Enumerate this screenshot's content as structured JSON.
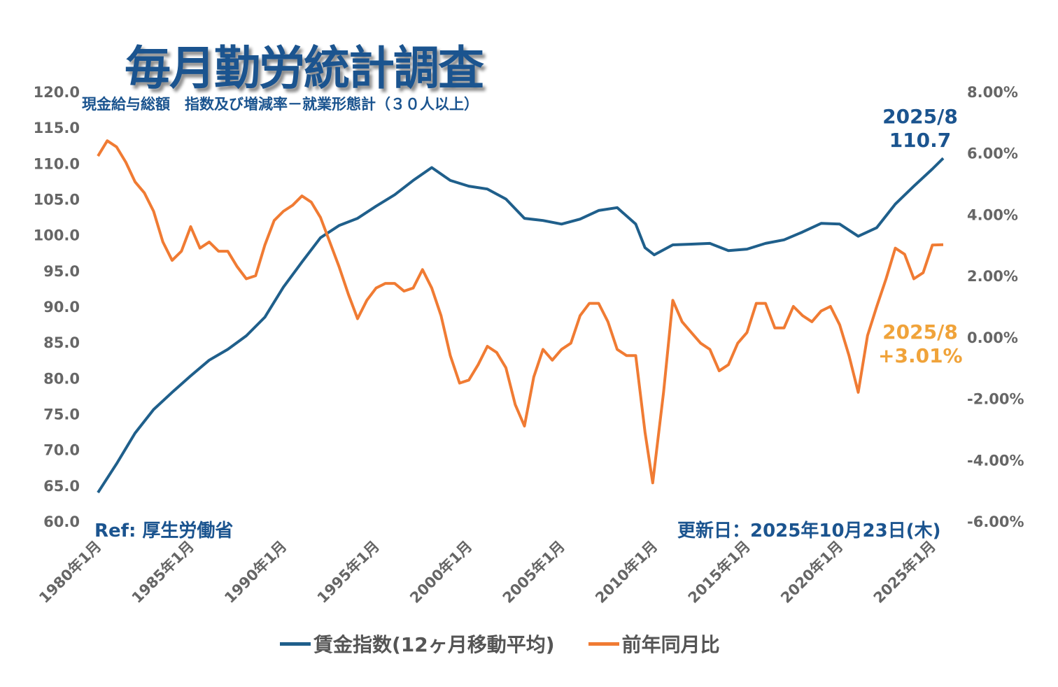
{
  "title": "毎月勤労統計調査",
  "subtitle": "現金給与総額　指数及び増減率－就業形態計（３０人以上）",
  "ref": "Ref: 厚生労働省",
  "updated": "更新日：2025年10月23日(木)",
  "colors": {
    "index": "#1f5f8b",
    "yoy": "#f07b33",
    "title": "#1b548f",
    "yoy_annotation": "#f0a33a",
    "axis_text": "#666666"
  },
  "chart_data": {
    "type": "line",
    "title": "毎月勤労統計調査",
    "subtitle": "現金給与総額　指数及び増減率－就業形態計（３０人以上）",
    "grid": false,
    "legend_position": "bottom",
    "x_range": [
      "1980-01",
      "2025-08"
    ],
    "x_ticks": [
      "1980年1月",
      "1985年1月",
      "1990年1月",
      "1995年1月",
      "2000年1月",
      "2005年1月",
      "2010年1月",
      "2015年1月",
      "2020年1月",
      "2025年1月"
    ],
    "y_left": {
      "range": [
        60,
        120
      ],
      "ticks": [
        "60.0",
        "65.0",
        "70.0",
        "75.0",
        "80.0",
        "85.0",
        "90.0",
        "95.0",
        "100.0",
        "105.0",
        "110.0",
        "115.0",
        "120.0"
      ]
    },
    "y_right": {
      "range": [
        -6,
        8
      ],
      "ticks": [
        "-6.00%",
        "-4.00%",
        "-2.00%",
        "0.00%",
        "2.00%",
        "4.00%",
        "6.00%",
        "8.00%"
      ]
    },
    "series": [
      {
        "name": "賃金指数(12ヶ月移動平均)",
        "axis": "left",
        "color": "#1f5f8b",
        "points": [
          [
            "1980-01",
            64
          ],
          [
            "1981-01",
            68
          ],
          [
            "1982-01",
            72.3
          ],
          [
            "1983-01",
            75.6
          ],
          [
            "1984-01",
            78
          ],
          [
            "1985-01",
            80.3
          ],
          [
            "1986-01",
            82.5
          ],
          [
            "1987-01",
            84
          ],
          [
            "1988-01",
            85.9
          ],
          [
            "1989-01",
            88.5
          ],
          [
            "1990-01",
            92.7
          ],
          [
            "1991-01",
            96.2
          ],
          [
            "1992-01",
            99.6
          ],
          [
            "1993-01",
            101.3
          ],
          [
            "1994-01",
            102.3
          ],
          [
            "1995-01",
            104
          ],
          [
            "1996-01",
            105.6
          ],
          [
            "1997-01",
            107.6
          ],
          [
            "1998-01",
            109.4
          ],
          [
            "1999-01",
            107.6
          ],
          [
            "2000-01",
            106.8
          ],
          [
            "2001-01",
            106.4
          ],
          [
            "2002-01",
            105
          ],
          [
            "2003-01",
            102.3
          ],
          [
            "2004-01",
            102
          ],
          [
            "2005-01",
            101.5
          ],
          [
            "2006-01",
            102.2
          ],
          [
            "2007-01",
            103.4
          ],
          [
            "2008-01",
            103.8
          ],
          [
            "2009-01",
            101.5
          ],
          [
            "2009-07",
            98.2
          ],
          [
            "2010-01",
            97.2
          ],
          [
            "2011-01",
            98.6
          ],
          [
            "2012-01",
            98.7
          ],
          [
            "2013-01",
            98.8
          ],
          [
            "2014-01",
            97.8
          ],
          [
            "2015-01",
            98
          ],
          [
            "2016-01",
            98.8
          ],
          [
            "2017-01",
            99.3
          ],
          [
            "2018-01",
            100.4
          ],
          [
            "2019-01",
            101.6
          ],
          [
            "2020-01",
            101.5
          ],
          [
            "2021-01",
            99.8
          ],
          [
            "2022-01",
            101
          ],
          [
            "2023-01",
            104.3
          ],
          [
            "2024-01",
            106.8
          ],
          [
            "2025-01",
            109.2
          ],
          [
            "2025-08",
            110.7
          ]
        ]
      },
      {
        "name": "前年同月比",
        "axis": "right",
        "color": "#f07b33",
        "points": [
          [
            "1980-01",
            5.9
          ],
          [
            "1980-07",
            6.4
          ],
          [
            "1981-01",
            6.2
          ],
          [
            "1981-07",
            5.7
          ],
          [
            "1982-01",
            5.06
          ],
          [
            "1982-07",
            4.7
          ],
          [
            "1983-01",
            4.1
          ],
          [
            "1983-07",
            3.1
          ],
          [
            "1984-01",
            2.5
          ],
          [
            "1984-07",
            2.8
          ],
          [
            "1985-01",
            3.6
          ],
          [
            "1985-07",
            2.9
          ],
          [
            "1986-01",
            3.1
          ],
          [
            "1986-07",
            2.8
          ],
          [
            "1987-01",
            2.8
          ],
          [
            "1987-07",
            2.3
          ],
          [
            "1988-01",
            1.9
          ],
          [
            "1988-07",
            2.0
          ],
          [
            "1989-01",
            3.0
          ],
          [
            "1989-07",
            3.8
          ],
          [
            "1990-01",
            4.1
          ],
          [
            "1990-07",
            4.3
          ],
          [
            "1991-01",
            4.6
          ],
          [
            "1991-07",
            4.4
          ],
          [
            "1992-01",
            3.9
          ],
          [
            "1992-07",
            3.1
          ],
          [
            "1993-01",
            2.3
          ],
          [
            "1993-07",
            1.4
          ],
          [
            "1994-01",
            0.6
          ],
          [
            "1994-07",
            1.2
          ],
          [
            "1995-01",
            1.6
          ],
          [
            "1995-07",
            1.75
          ],
          [
            "1996-01",
            1.75
          ],
          [
            "1996-07",
            1.5
          ],
          [
            "1997-01",
            1.6
          ],
          [
            "1997-07",
            2.2
          ],
          [
            "1998-01",
            1.6
          ],
          [
            "1998-07",
            0.7
          ],
          [
            "1999-01",
            -0.6
          ],
          [
            "1999-07",
            -1.5
          ],
          [
            "2000-01",
            -1.4
          ],
          [
            "2000-07",
            -0.9
          ],
          [
            "2001-01",
            -0.3
          ],
          [
            "2001-07",
            -0.5
          ],
          [
            "2002-01",
            -1.0
          ],
          [
            "2002-07",
            -2.2
          ],
          [
            "2003-01",
            -2.9
          ],
          [
            "2003-07",
            -1.3
          ],
          [
            "2004-01",
            -0.4
          ],
          [
            "2004-07",
            -0.75
          ],
          [
            "2005-01",
            -0.4
          ],
          [
            "2005-07",
            -0.2
          ],
          [
            "2006-01",
            0.7
          ],
          [
            "2006-07",
            1.1
          ],
          [
            "2007-01",
            1.1
          ],
          [
            "2007-07",
            0.5
          ],
          [
            "2008-01",
            -0.4
          ],
          [
            "2008-07",
            -0.6
          ],
          [
            "2009-01",
            -0.6
          ],
          [
            "2009-07",
            -3.1
          ],
          [
            "2009-12",
            -4.75
          ],
          [
            "2010-07",
            -1.8
          ],
          [
            "2011-01",
            1.2
          ],
          [
            "2011-07",
            0.5
          ],
          [
            "2012-01",
            0.15
          ],
          [
            "2012-07",
            -0.2
          ],
          [
            "2013-01",
            -0.4
          ],
          [
            "2013-07",
            -1.1
          ],
          [
            "2014-01",
            -0.9
          ],
          [
            "2014-07",
            -0.2
          ],
          [
            "2015-01",
            0.15
          ],
          [
            "2015-07",
            1.1
          ],
          [
            "2016-01",
            1.1
          ],
          [
            "2016-07",
            0.3
          ],
          [
            "2017-01",
            0.3
          ],
          [
            "2017-07",
            1.0
          ],
          [
            "2018-01",
            0.7
          ],
          [
            "2018-07",
            0.5
          ],
          [
            "2019-01",
            0.85
          ],
          [
            "2019-07",
            1.0
          ],
          [
            "2020-01",
            0.4
          ],
          [
            "2020-07",
            -0.6
          ],
          [
            "2021-01",
            -1.8
          ],
          [
            "2021-07",
            0.05
          ],
          [
            "2022-01",
            1.0
          ],
          [
            "2022-07",
            1.9
          ],
          [
            "2023-01",
            2.9
          ],
          [
            "2023-07",
            2.7
          ],
          [
            "2024-01",
            1.9
          ],
          [
            "2024-07",
            2.1
          ],
          [
            "2025-01",
            3.0
          ],
          [
            "2025-08",
            3.01
          ]
        ]
      }
    ],
    "annotations": [
      {
        "series": "賃金指数(12ヶ月移動平均)",
        "label": "2025/8",
        "value": "110.7"
      },
      {
        "series": "前年同月比",
        "label": "2025/8",
        "value": "+3.01%"
      }
    ]
  }
}
